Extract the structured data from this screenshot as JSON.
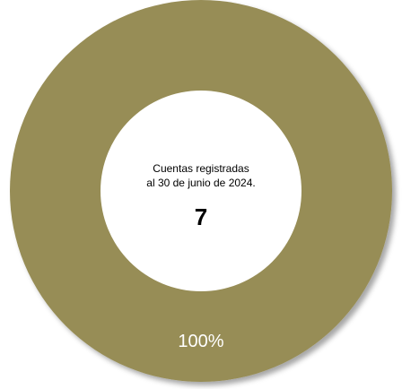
{
  "chart_data": {
    "type": "pie",
    "donut": true,
    "categories": [
      "Cuentas registradas"
    ],
    "values": [
      7
    ],
    "data_labels": [
      "100%"
    ],
    "colors": [
      "#978d57"
    ],
    "center_text": {
      "line1": "Cuentas registradas",
      "line2": "al 30 de junio de 2024.",
      "value": "7"
    },
    "legend": "none"
  }
}
